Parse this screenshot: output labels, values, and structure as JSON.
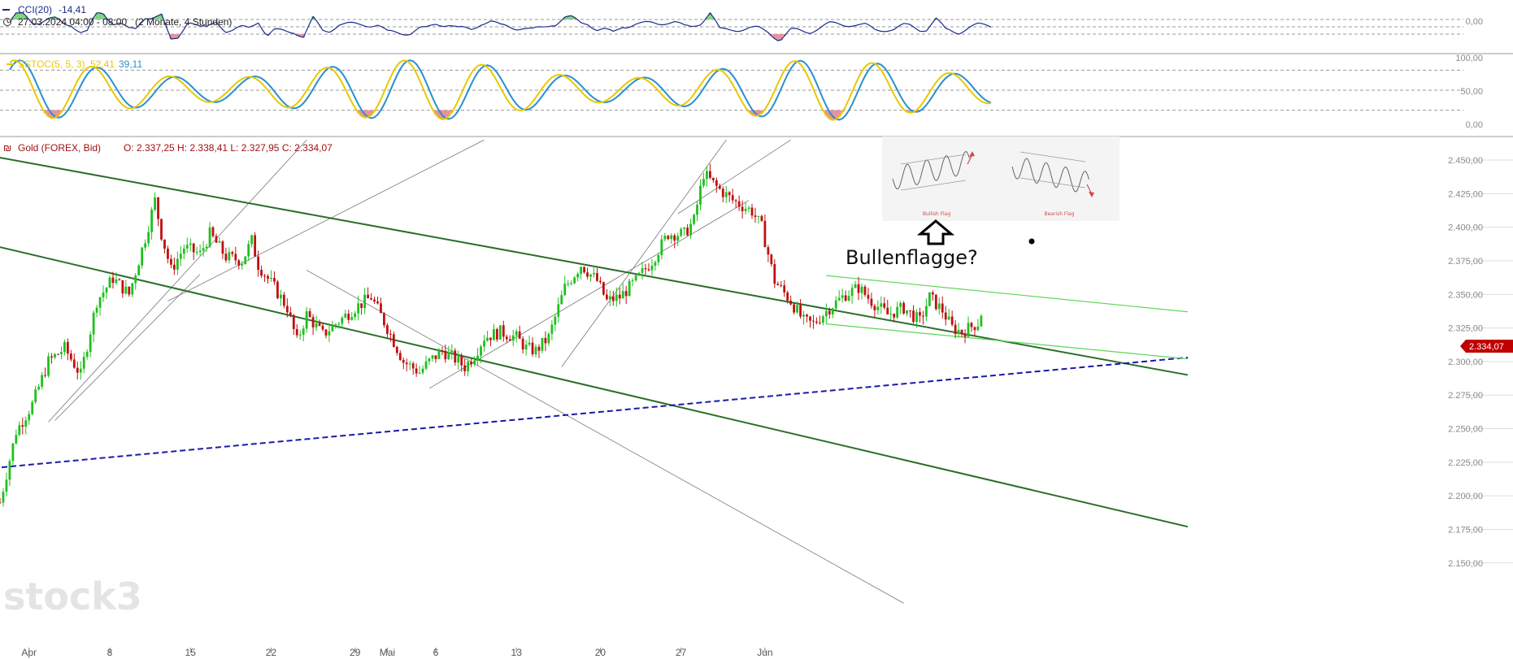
{
  "cci_panel": {
    "label": "CCI(20)",
    "value": "-14,41",
    "period": "27.03.2024 04:00 - 08:00",
    "span": "(2 Monate, 4 Stunden)",
    "ticks": [
      "0,00"
    ]
  },
  "sstoc_panel": {
    "label": "SSTOC(5, 5, 3)",
    "value_k": "52,41",
    "value_d": "39,11",
    "ticks": [
      "100,00",
      "50,00",
      "0,00"
    ]
  },
  "price_panel": {
    "instrument": "Gold (FOREX, Bid)",
    "ohlc": "O: 2.337,25  H: 2.338,41  L: 2.327,95  C: 2.334,07",
    "last_price": "2.334,07",
    "watermark": "stock3"
  },
  "annotation": {
    "text": "Bullenflagge?",
    "bullish_caption": "Bullish Flag",
    "bearish_caption": "Bearish Flag"
  },
  "colors": {
    "up": "#1fc01f",
    "down": "#c01010",
    "channel": "#2b6e2b",
    "flag": "#5cd65c",
    "dashed": "#1a1aa8",
    "last_price_badge": "#c00000",
    "cci_line": "#1a2a8a",
    "stoch_k": "#e8c800",
    "stoch_d": "#2a8fd0"
  },
  "chart_data": [
    {
      "type": "line",
      "name_printed": "CCI(20)",
      "title": "",
      "y": "CCI oscillator between approx -200 and +200",
      "ylim": [
        -200,
        200
      ],
      "y_ticks": [
        "0,00"
      ]
    },
    {
      "type": "line",
      "name_printed": "SSTOC(5, 5, 3)",
      "title": "",
      "ylim": [
        0,
        100
      ],
      "y_ticks": [
        "100,00",
        "50,00",
        "0,00"
      ]
    },
    {
      "type": "candlestick",
      "title": "",
      "x_tick_labels": [
        "Apr",
        "8",
        "15",
        "22",
        "29",
        "Mai",
        "6",
        "13",
        "20",
        "27",
        "Jun"
      ],
      "ylim": [
        2150,
        2460
      ],
      "y_ticks": [
        "2.450,00",
        "2.425,00",
        "2.400,00",
        "2.375,00",
        "2.350,00",
        "2.325,00",
        "2.300,00",
        "2.275,00",
        "2.250,00",
        "2.225,00",
        "2.200,00",
        "2.175,00",
        "2.150,00"
      ],
      "price_path": [
        [
          0,
          2195
        ],
        [
          5,
          2248
        ],
        [
          10,
          2268
        ],
        [
          15,
          2300
        ],
        [
          20,
          2310
        ],
        [
          25,
          2290
        ],
        [
          30,
          2345
        ],
        [
          35,
          2362
        ],
        [
          40,
          2350
        ],
        [
          45,
          2392
        ],
        [
          48,
          2420
        ],
        [
          50,
          2395
        ],
        [
          53,
          2368
        ],
        [
          57,
          2385
        ],
        [
          62,
          2380
        ],
        [
          65,
          2395
        ],
        [
          70,
          2378
        ],
        [
          75,
          2375
        ],
        [
          78,
          2390
        ],
        [
          80,
          2372
        ],
        [
          85,
          2355
        ],
        [
          89,
          2340
        ],
        [
          92,
          2315
        ],
        [
          95,
          2335
        ],
        [
          100,
          2320
        ],
        [
          105,
          2330
        ],
        [
          110,
          2340
        ],
        [
          115,
          2348
        ],
        [
          120,
          2325
        ],
        [
          125,
          2300
        ],
        [
          130,
          2292
        ],
        [
          133,
          2300
        ],
        [
          137,
          2308
        ],
        [
          141,
          2302
        ],
        [
          144,
          2296
        ],
        [
          147,
          2305
        ],
        [
          150,
          2318
        ],
        [
          155,
          2322
        ],
        [
          160,
          2318
        ],
        [
          163,
          2310
        ],
        [
          166,
          2308
        ],
        [
          170,
          2318
        ],
        [
          175,
          2355
        ],
        [
          180,
          2372
        ],
        [
          185,
          2360
        ],
        [
          188,
          2345
        ],
        [
          192,
          2348
        ],
        [
          197,
          2360
        ],
        [
          202,
          2375
        ],
        [
          207,
          2395
        ],
        [
          212,
          2395
        ],
        [
          215,
          2405
        ],
        [
          218,
          2440
        ],
        [
          222,
          2430
        ],
        [
          227,
          2420
        ],
        [
          233,
          2412
        ],
        [
          236,
          2400
        ],
        [
          240,
          2360
        ],
        [
          245,
          2345
        ],
        [
          249,
          2330
        ],
        [
          252,
          2328
        ],
        [
          257,
          2340
        ],
        [
          262,
          2350
        ],
        [
          266,
          2355
        ],
        [
          270,
          2345
        ],
        [
          275,
          2335
        ],
        [
          280,
          2340
        ],
        [
          285,
          2330
        ],
        [
          288,
          2348
        ],
        [
          292,
          2338
        ],
        [
          295,
          2325
        ],
        [
          298,
          2322
        ],
        [
          301,
          2326
        ],
        [
          304,
          2330
        ]
      ],
      "last": 2334.07,
      "lines": [
        {
          "style": "solid",
          "color": "dark green",
          "points": [
            [
              -5,
              2454
            ],
            [
              368,
              2290
            ]
          ]
        },
        {
          "style": "solid",
          "color": "dark green",
          "points": [
            [
              -5,
              2388
            ],
            [
              368,
              2177
            ]
          ]
        },
        {
          "style": "dashed",
          "color": "blue",
          "points": [
            [
              -5,
              2220
            ],
            [
              368,
              2303
            ]
          ]
        },
        {
          "style": "solid",
          "color": "light green",
          "points": [
            [
              256,
              2364
            ],
            [
              368,
              2337
            ]
          ]
        },
        {
          "style": "solid",
          "color": "light green",
          "points": [
            [
              256,
              2328
            ],
            [
              368,
              2302
            ]
          ]
        }
      ]
    }
  ]
}
